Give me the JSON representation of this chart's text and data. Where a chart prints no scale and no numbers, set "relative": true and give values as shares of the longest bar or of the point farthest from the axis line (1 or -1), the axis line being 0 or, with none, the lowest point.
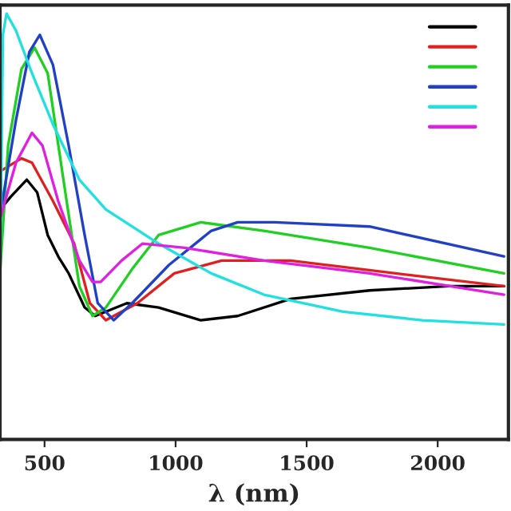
{
  "chart_data": {
    "type": "line",
    "relative": true,
    "xlabel": "λ (nm)",
    "xlim": [
      330,
      2270
    ],
    "xticks": [
      500,
      1000,
      1500,
      2000
    ],
    "grid": false,
    "series": [
      {
        "color": "#000000",
        "x": [
          331,
          371,
          432,
          472,
          512,
          552,
          592,
          653,
          693,
          814,
          935,
          1096,
          1237,
          1438,
          1740,
          2042,
          2253
        ],
        "values": [
          0.54,
          0.57,
          0.61,
          0.58,
          0.48,
          0.43,
          0.39,
          0.31,
          0.29,
          0.32,
          0.31,
          0.28,
          0.29,
          0.33,
          0.35,
          0.36,
          0.36
        ]
      },
      {
        "color": "#e02020",
        "x": [
          331,
          412,
          452,
          532,
          613,
          673,
          734,
          854,
          995,
          1176,
          1438,
          1840,
          2253
        ],
        "values": [
          0.63,
          0.66,
          0.65,
          0.56,
          0.46,
          0.32,
          0.28,
          0.32,
          0.39,
          0.42,
          0.42,
          0.39,
          0.36
        ]
      },
      {
        "color": "#20d020",
        "x": [
          331,
          361,
          412,
          462,
          512,
          572,
          633,
          683,
          734,
          834,
          935,
          1096,
          1337,
          1740,
          2253
        ],
        "values": [
          0.4,
          0.69,
          0.87,
          0.92,
          0.86,
          0.61,
          0.36,
          0.29,
          0.31,
          0.4,
          0.48,
          0.51,
          0.49,
          0.45,
          0.39
        ]
      },
      {
        "color": "#2040c8",
        "x": [
          331,
          391,
          442,
          482,
          532,
          592,
          653,
          703,
          764,
          834,
          975,
          1136,
          1237,
          1378,
          1740,
          2253
        ],
        "values": [
          0.53,
          0.75,
          0.91,
          0.95,
          0.88,
          0.69,
          0.48,
          0.32,
          0.28,
          0.32,
          0.41,
          0.49,
          0.51,
          0.51,
          0.5,
          0.43
        ]
      },
      {
        "color": "#20e0e0",
        "x": [
          331,
          341,
          355,
          391,
          452,
          532,
          633,
          734,
          935,
          1136,
          1337,
          1639,
          1941,
          2253
        ],
        "values": [
          0.4,
          0.95,
          1.0,
          0.96,
          0.86,
          0.74,
          0.61,
          0.54,
          0.46,
          0.39,
          0.34,
          0.3,
          0.28,
          0.27
        ]
      },
      {
        "color": "#e020e0",
        "x": [
          331,
          391,
          452,
          492,
          552,
          633,
          683,
          714,
          794,
          874,
          1035,
          1337,
          1740,
          2253
        ],
        "values": [
          0.52,
          0.65,
          0.72,
          0.69,
          0.56,
          0.42,
          0.37,
          0.37,
          0.42,
          0.46,
          0.45,
          0.42,
          0.39,
          0.34
        ]
      }
    ]
  }
}
